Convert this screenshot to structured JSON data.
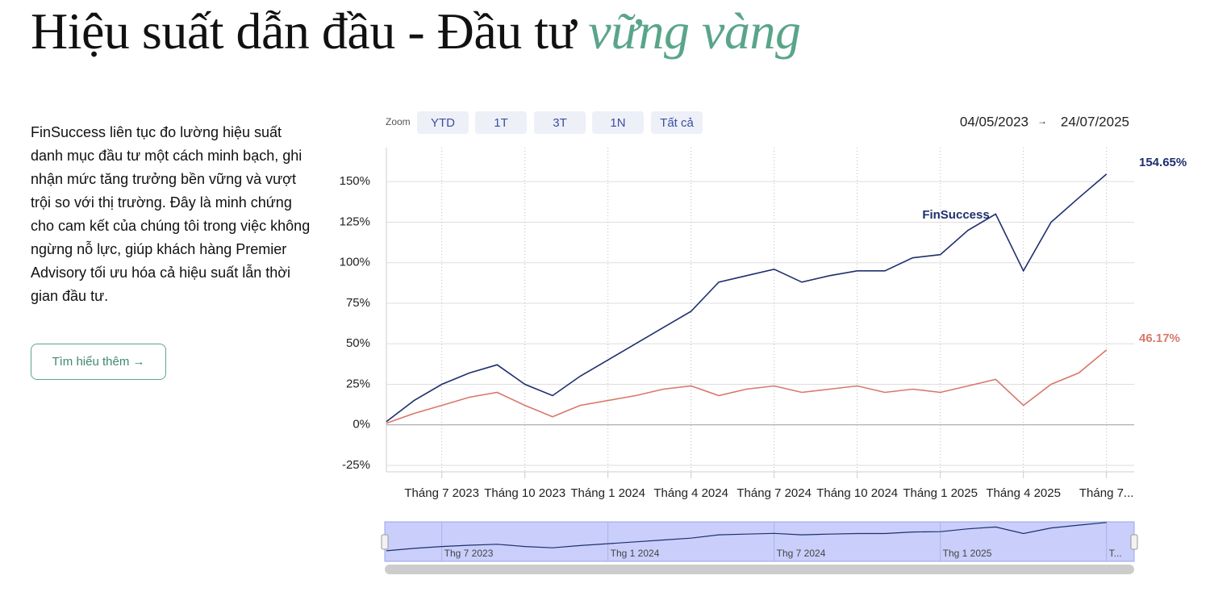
{
  "header": {
    "title": "Hiệu suất dẫn đầu - Đầu tư",
    "highlight": "vững vàng"
  },
  "description": "FinSuccess liên tục đo lường hiệu suất danh mục đầu tư một cách minh bạch, ghi nhận mức tăng trưởng bền vững và vượt trội so với thị trường. Đây là minh chứng cho cam kết của chúng tôi trong việc không ngừng nỗ lực, giúp khách hàng Premier Advisory tối ưu hóa cả hiệu suất lẫn thời gian đầu tư.",
  "button": "Tìm hiểu thêm →",
  "zoom": {
    "label": "Zoom",
    "buttons": [
      "YTD",
      "1T",
      "3T",
      "1N",
      "Tất cả"
    ]
  },
  "range": {
    "from": "04/05/2023",
    "separator": "→",
    "to": "24/07/2025"
  },
  "chart_data": {
    "type": "line",
    "x": [
      "2023-05",
      "2023-06",
      "2023-07",
      "2023-08",
      "2023-09",
      "2023-10",
      "2023-11",
      "2023-12",
      "2024-01",
      "2024-02",
      "2024-03",
      "2024-04",
      "2024-05",
      "2024-06",
      "2024-07",
      "2024-08",
      "2024-09",
      "2024-10",
      "2024-11",
      "2024-12",
      "2025-01",
      "2025-02",
      "2025-03",
      "2025-04",
      "2025-05",
      "2025-06",
      "2025-07"
    ],
    "xlim": [
      "2023-05",
      "2025-08"
    ],
    "xticks": [
      {
        "value": "2023-07",
        "label": "Tháng 7 2023"
      },
      {
        "value": "2023-10",
        "label": "Tháng 10 2023"
      },
      {
        "value": "2024-01",
        "label": "Tháng 1 2024"
      },
      {
        "value": "2024-04",
        "label": "Tháng 4 2024"
      },
      {
        "value": "2024-07",
        "label": "Tháng 7 2024"
      },
      {
        "value": "2024-10",
        "label": "Tháng 10 2024"
      },
      {
        "value": "2025-01",
        "label": "Tháng 1 2025"
      },
      {
        "value": "2025-04",
        "label": "Tháng 4 2025"
      },
      {
        "value": "2025-07",
        "label": "Tháng 7..."
      }
    ],
    "ylim": [
      -29,
      171
    ],
    "yticks": [
      {
        "value": -25,
        "label": "-25%"
      },
      {
        "value": 0,
        "label": "0%"
      },
      {
        "value": 25,
        "label": "25%"
      },
      {
        "value": 50,
        "label": "50%"
      },
      {
        "value": 75,
        "label": "75%"
      },
      {
        "value": 100,
        "label": "100%"
      },
      {
        "value": 125,
        "label": "125%"
      },
      {
        "value": 150,
        "label": "150%"
      }
    ],
    "grid": true,
    "series": [
      {
        "name": "FinSuccess",
        "color": "#1f2f6e",
        "values": [
          2,
          15,
          25,
          32,
          37,
          25,
          18,
          30,
          40,
          50,
          60,
          70,
          88,
          92,
          96,
          88,
          92,
          95,
          95,
          103,
          105,
          120,
          130,
          95,
          125,
          140,
          154.65
        ],
        "last_label": "154.65%"
      },
      {
        "color": "#d9786a",
        "values": [
          1,
          7,
          12,
          17,
          20,
          12,
          5,
          12,
          15,
          18,
          22,
          24,
          18,
          22,
          24,
          20,
          22,
          24,
          20,
          22,
          20,
          24,
          28,
          12,
          25,
          32,
          46.17
        ],
        "last_label": "46.17%"
      }
    ],
    "navigator": {
      "ticks": [
        {
          "value": "2023-07",
          "label": "Thg 7 2023"
        },
        {
          "value": "2024-01",
          "label": "Thg 1 2024"
        },
        {
          "value": "2024-07",
          "label": "Thg 7 2024"
        },
        {
          "value": "2025-01",
          "label": "Thg 1 2025"
        },
        {
          "value": "2025-07",
          "label": "T..."
        }
      ]
    }
  }
}
